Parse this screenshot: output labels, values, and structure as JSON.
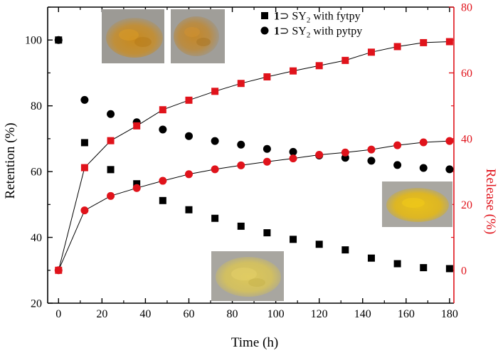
{
  "chart_data": {
    "type": "scatter",
    "title": "",
    "xlabel": "Time (h)",
    "ylabel_left": "Retention (%)",
    "ylabel_right": "Release (%)",
    "xlim": [
      -5,
      182
    ],
    "ylim_left": [
      20,
      110
    ],
    "ylim_right": [
      -10,
      80
    ],
    "x_ticks": [
      0,
      20,
      40,
      60,
      80,
      100,
      120,
      140,
      160,
      180
    ],
    "y_ticks_left": [
      20,
      40,
      60,
      80,
      100
    ],
    "y_ticks_right": [
      0,
      20,
      40,
      60,
      80
    ],
    "x_tick_labels": [
      "0",
      "20",
      "40",
      "60",
      "80",
      "100",
      "120",
      "140",
      "160",
      "180"
    ],
    "y_tick_labels_left": [
      "20",
      "40",
      "60",
      "80",
      "100"
    ],
    "y_tick_labels_right": [
      "0",
      "20",
      "40",
      "60",
      "80"
    ],
    "legend": {
      "position": "top-center",
      "entries": [
        {
          "prefix": "1",
          "symbol": "⊃",
          "subject": "SY",
          "subscript": "2",
          "suffix": "with fytpy",
          "marker": "square"
        },
        {
          "prefix": "1",
          "symbol": "⊃",
          "subject": "SY",
          "subscript": "2",
          "suffix": "with pytpy",
          "marker": "circle"
        }
      ]
    },
    "series": [
      {
        "name": "1⊃SY2 with fytpy retention",
        "axis": "left",
        "marker": "square",
        "color": "#000000",
        "connected": false,
        "x": [
          0,
          12,
          24,
          36,
          48,
          60,
          72,
          84,
          96,
          108,
          120,
          132,
          144,
          156,
          168,
          180
        ],
        "y": [
          100,
          68.8,
          60.6,
          56.3,
          51.2,
          48.4,
          45.8,
          43.4,
          41.4,
          39.4,
          37.9,
          36.2,
          33.7,
          32.0,
          30.8,
          30.5
        ]
      },
      {
        "name": "1⊃SY2 with pytpy retention",
        "axis": "left",
        "marker": "circle",
        "color": "#000000",
        "connected": false,
        "x": [
          0,
          12,
          24,
          36,
          48,
          60,
          72,
          84,
          96,
          108,
          120,
          132,
          144,
          156,
          168,
          180
        ],
        "y": [
          100,
          81.8,
          77.5,
          75.0,
          72.8,
          70.8,
          69.3,
          68.2,
          66.9,
          66.0,
          64.9,
          64.2,
          63.3,
          62.0,
          61.1,
          60.7
        ]
      },
      {
        "name": "1⊃SY2 with fytpy release",
        "axis": "right",
        "marker": "square",
        "color": "#e0131b",
        "connected": true,
        "x": [
          0,
          12,
          24,
          36,
          48,
          60,
          72,
          84,
          96,
          108,
          120,
          132,
          144,
          156,
          168,
          180
        ],
        "y": [
          0,
          31.2,
          39.4,
          43.9,
          48.8,
          51.7,
          54.4,
          56.8,
          58.8,
          60.6,
          62.2,
          63.8,
          66.3,
          68.0,
          69.2,
          69.5
        ]
      },
      {
        "name": "1⊃SY2 with pytpy release",
        "axis": "right",
        "marker": "circle",
        "color": "#e0131b",
        "connected": true,
        "x": [
          0,
          12,
          24,
          36,
          48,
          60,
          72,
          84,
          96,
          108,
          120,
          132,
          144,
          156,
          168,
          180
        ],
        "y": [
          0,
          18.2,
          22.6,
          25.0,
          27.2,
          29.2,
          30.7,
          31.9,
          33.0,
          34.0,
          35.1,
          35.8,
          36.7,
          38.0,
          38.9,
          39.3
        ]
      }
    ]
  },
  "colors": {
    "axis_left": "#000000",
    "axis_right": "#e0131b",
    "series_black": "#000000",
    "series_red": "#e0131b",
    "photo_orange": "#c98f26",
    "photo_yellow": "#e2bb1c",
    "photo_pale_yellow": "#d9c457"
  }
}
